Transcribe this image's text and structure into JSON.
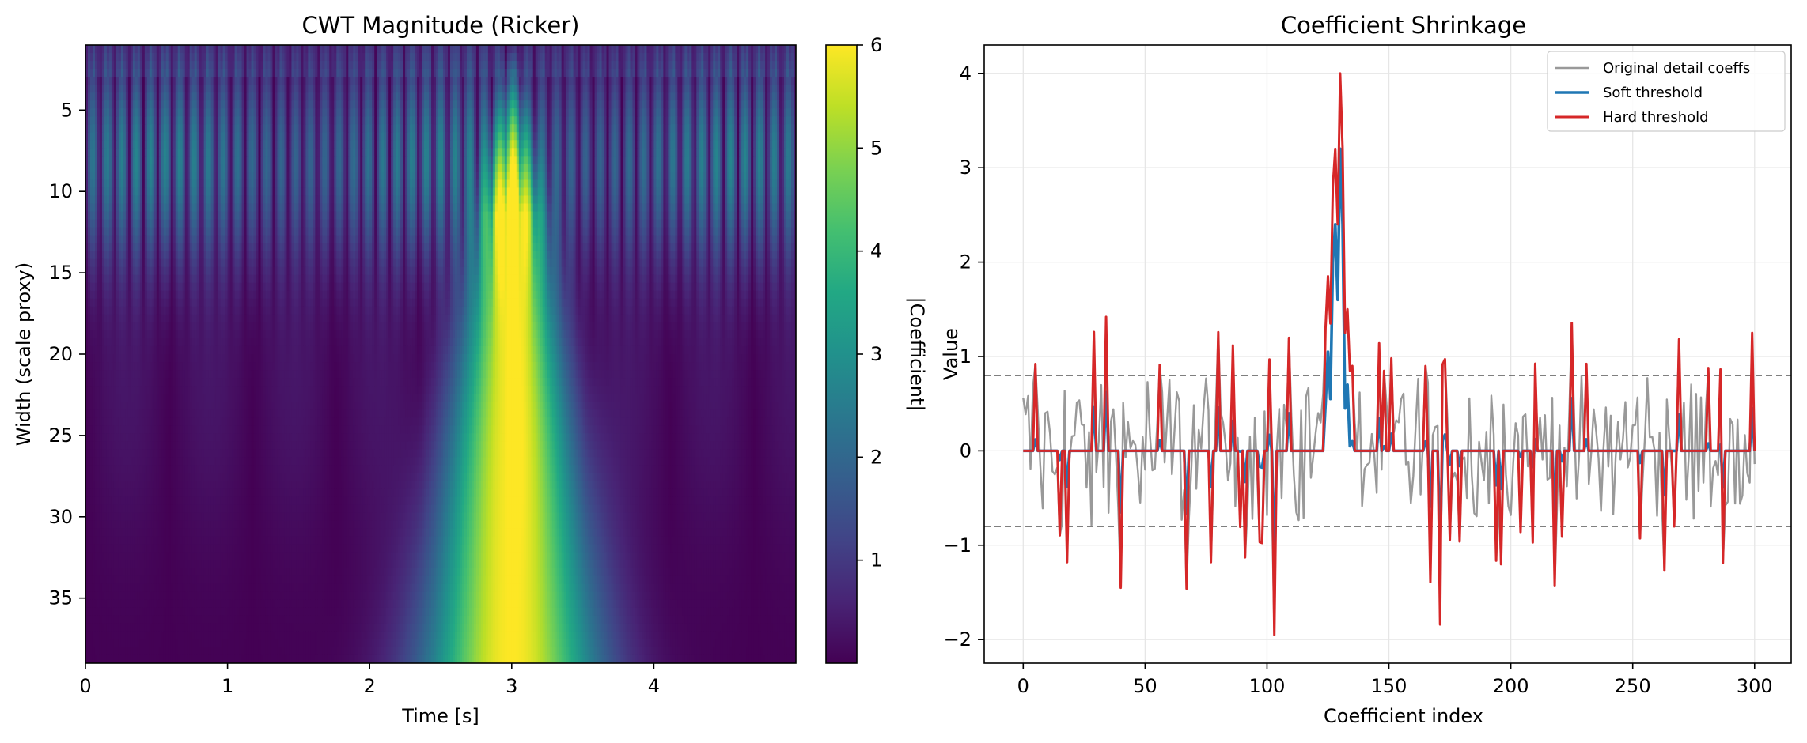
{
  "chart_data": [
    {
      "type": "heatmap",
      "title": "CWT Magnitude (Ricker)",
      "xlabel": "Time [s]",
      "ylabel": "Width (scale proxy)",
      "xlim": [
        0,
        5
      ],
      "ylim": [
        39,
        1
      ],
      "x_ticks": [
        "0",
        "1",
        "2",
        "3",
        "4"
      ],
      "y_ticks": [
        "5",
        "10",
        "15",
        "20",
        "25",
        "30",
        "35"
      ],
      "colormap": "viridis",
      "colorbar": {
        "label": "|Coefficient|",
        "range": [
          0,
          6
        ],
        "ticks": [
          "1",
          "2",
          "3",
          "4",
          "5",
          "6"
        ]
      },
      "features": {
        "background_oscillation_cycles_per_second": 10,
        "background_peak_magnitude": 2.7,
        "background_peak_width": 8,
        "transient_time": 3.0,
        "transient_peak_magnitude": 6.0
      }
    },
    {
      "type": "line",
      "title": "Coefficient Shrinkage",
      "xlabel": "Coefficient index",
      "ylabel": "Value",
      "xlim": [
        -16,
        315
      ],
      "ylim": [
        -2.25,
        4.3
      ],
      "x_ticks": [
        "0",
        "50",
        "100",
        "150",
        "200",
        "250",
        "300"
      ],
      "y_ticks": [
        "4",
        "3",
        "2",
        "1",
        "0",
        "−1",
        "−2"
      ],
      "grid": true,
      "threshold": 0.8,
      "legend": {
        "position": "top-right",
        "entries": [
          {
            "label": "Original detail coeffs",
            "color": "#999999"
          },
          {
            "label": "Soft threshold",
            "color": "#1f77b4"
          },
          {
            "label": "Hard threshold",
            "color": "#d62728"
          }
        ]
      },
      "series": [
        {
          "name": "Original detail coeffs",
          "color": "#999999"
        },
        {
          "name": "Soft threshold",
          "color": "#1f77b4"
        },
        {
          "name": "Hard threshold",
          "color": "#d62728"
        }
      ],
      "peak_region": {
        "x": [
          120,
          121,
          122,
          123,
          124,
          125,
          126,
          127,
          128,
          129,
          130,
          131,
          132,
          133,
          134,
          135,
          136,
          137
        ],
        "y": [
          0.2,
          0.4,
          0.3,
          0.6,
          1.3,
          1.85,
          1.35,
          2.8,
          3.2,
          2.4,
          4.0,
          3.2,
          1.25,
          1.5,
          0.85,
          0.9,
          0.3,
          0.0
        ]
      },
      "notable_points": [
        {
          "x": 5,
          "y": 0.92
        },
        {
          "x": 18,
          "y": -1.18
        },
        {
          "x": 34,
          "y": 1.42
        },
        {
          "x": 67,
          "y": -1.46
        },
        {
          "x": 103,
          "y": -1.95
        },
        {
          "x": 171,
          "y": -1.84
        },
        {
          "x": 299,
          "y": 1.25
        }
      ]
    }
  ]
}
